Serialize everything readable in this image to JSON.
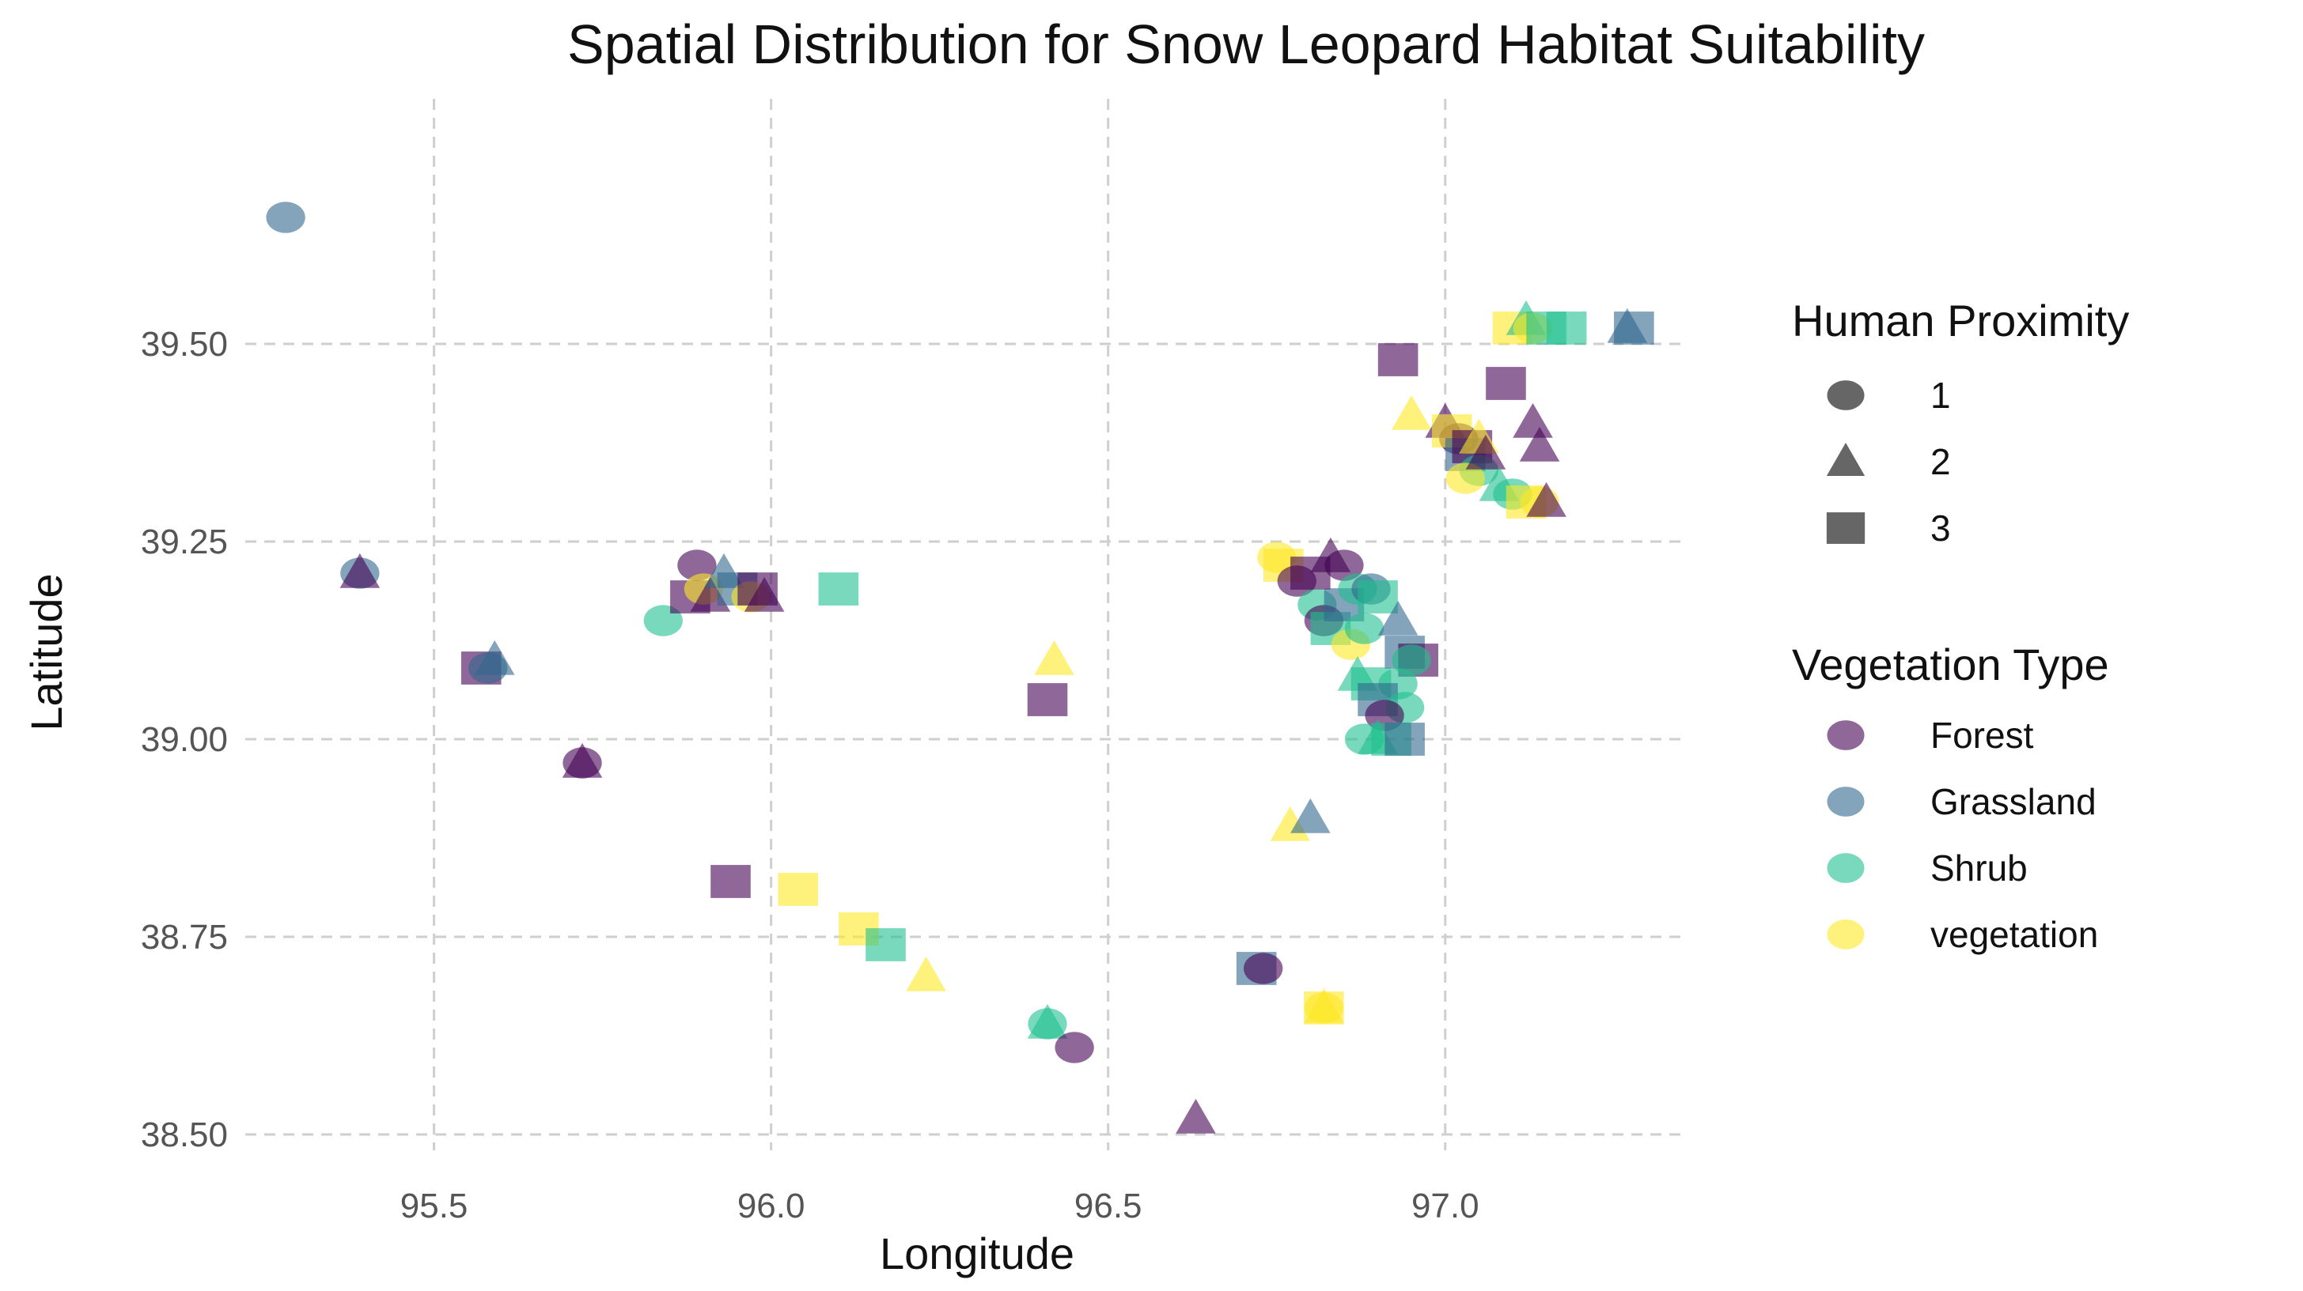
{
  "chart_data": {
    "type": "scatter",
    "title": "Spatial Distribution for Snow Leopard Habitat Suitability",
    "xlabel": "Longitude",
    "ylabel": "Latitude",
    "xlim": [
      95.22,
      97.35
    ],
    "ylim": [
      38.48,
      39.81
    ],
    "x_ticks": [
      95.5,
      96.0,
      96.5,
      97.0
    ],
    "x_tick_labels": [
      "95.5",
      "96.0",
      "96.5",
      "97.0"
    ],
    "y_ticks": [
      38.5,
      38.75,
      39.0,
      39.25,
      39.5
    ],
    "y_tick_labels": [
      "38.50",
      "38.75",
      "39.00",
      "39.25",
      "39.50"
    ],
    "grid": true,
    "legend_shape": {
      "title": "Human Proximity",
      "items": [
        {
          "label": "1",
          "shape": "circle"
        },
        {
          "label": "2",
          "shape": "triangle"
        },
        {
          "label": "3",
          "shape": "square"
        }
      ]
    },
    "legend_color": {
      "title": "Vegetation Type",
      "items": [
        {
          "label": "Forest",
          "color": "#440154"
        },
        {
          "label": "Grassland",
          "color": "#31688e"
        },
        {
          "label": "Shrub",
          "color": "#1fbf8f"
        },
        {
          "label": "vegetation",
          "color": "#fde725"
        }
      ]
    },
    "points": [
      {
        "lon": 95.28,
        "lat": 39.66,
        "veg": "Grassland",
        "prox": 1
      },
      {
        "lon": 95.39,
        "lat": 39.21,
        "veg": "Grassland",
        "prox": 1
      },
      {
        "lon": 95.39,
        "lat": 39.21,
        "veg": "Forest",
        "prox": 2
      },
      {
        "lon": 95.57,
        "lat": 39.09,
        "veg": "Forest",
        "prox": 3
      },
      {
        "lon": 95.58,
        "lat": 39.09,
        "veg": "Grassland",
        "prox": 1
      },
      {
        "lon": 95.59,
        "lat": 39.1,
        "veg": "Grassland",
        "prox": 2
      },
      {
        "lon": 95.72,
        "lat": 38.97,
        "veg": "Forest",
        "prox": 1
      },
      {
        "lon": 95.72,
        "lat": 38.97,
        "veg": "Forest",
        "prox": 2
      },
      {
        "lon": 95.84,
        "lat": 39.15,
        "veg": "Shrub",
        "prox": 1
      },
      {
        "lon": 95.88,
        "lat": 39.18,
        "veg": "Forest",
        "prox": 3
      },
      {
        "lon": 95.89,
        "lat": 39.22,
        "veg": "Forest",
        "prox": 1
      },
      {
        "lon": 95.9,
        "lat": 39.19,
        "veg": "vegetation",
        "prox": 1
      },
      {
        "lon": 95.91,
        "lat": 39.18,
        "veg": "Forest",
        "prox": 2
      },
      {
        "lon": 95.93,
        "lat": 39.21,
        "veg": "Grassland",
        "prox": 2
      },
      {
        "lon": 95.95,
        "lat": 39.19,
        "veg": "Grassland",
        "prox": 3
      },
      {
        "lon": 95.97,
        "lat": 39.18,
        "veg": "vegetation",
        "prox": 1
      },
      {
        "lon": 95.98,
        "lat": 39.19,
        "veg": "Forest",
        "prox": 3
      },
      {
        "lon": 95.99,
        "lat": 39.18,
        "veg": "Forest",
        "prox": 2
      },
      {
        "lon": 96.1,
        "lat": 39.19,
        "veg": "Shrub",
        "prox": 3
      },
      {
        "lon": 95.94,
        "lat": 38.82,
        "veg": "Forest",
        "prox": 3
      },
      {
        "lon": 96.04,
        "lat": 38.81,
        "veg": "vegetation",
        "prox": 3
      },
      {
        "lon": 96.13,
        "lat": 38.76,
        "veg": "vegetation",
        "prox": 3
      },
      {
        "lon": 96.17,
        "lat": 38.74,
        "veg": "Shrub",
        "prox": 3
      },
      {
        "lon": 96.23,
        "lat": 38.7,
        "veg": "vegetation",
        "prox": 2
      },
      {
        "lon": 96.41,
        "lat": 38.64,
        "veg": "Shrub",
        "prox": 1
      },
      {
        "lon": 96.41,
        "lat": 38.64,
        "veg": "Shrub",
        "prox": 2
      },
      {
        "lon": 96.45,
        "lat": 38.61,
        "veg": "Forest",
        "prox": 1
      },
      {
        "lon": 96.42,
        "lat": 39.1,
        "veg": "vegetation",
        "prox": 2
      },
      {
        "lon": 96.41,
        "lat": 39.05,
        "veg": "Forest",
        "prox": 3
      },
      {
        "lon": 96.63,
        "lat": 38.52,
        "veg": "Forest",
        "prox": 2
      },
      {
        "lon": 96.72,
        "lat": 38.71,
        "veg": "Grassland",
        "prox": 3
      },
      {
        "lon": 96.73,
        "lat": 38.71,
        "veg": "Forest",
        "prox": 1
      },
      {
        "lon": 96.77,
        "lat": 38.89,
        "veg": "vegetation",
        "prox": 2
      },
      {
        "lon": 96.8,
        "lat": 38.9,
        "veg": "Grassland",
        "prox": 2
      },
      {
        "lon": 96.82,
        "lat": 38.66,
        "veg": "vegetation",
        "prox": 1
      },
      {
        "lon": 96.82,
        "lat": 38.66,
        "veg": "vegetation",
        "prox": 2
      },
      {
        "lon": 96.82,
        "lat": 38.66,
        "veg": "vegetation",
        "prox": 3
      },
      {
        "lon": 96.75,
        "lat": 39.23,
        "veg": "vegetation",
        "prox": 1
      },
      {
        "lon": 96.76,
        "lat": 39.22,
        "veg": "vegetation",
        "prox": 3
      },
      {
        "lon": 96.78,
        "lat": 39.2,
        "veg": "Forest",
        "prox": 1
      },
      {
        "lon": 96.8,
        "lat": 39.21,
        "veg": "Forest",
        "prox": 3
      },
      {
        "lon": 96.83,
        "lat": 39.23,
        "veg": "Forest",
        "prox": 2
      },
      {
        "lon": 96.85,
        "lat": 39.22,
        "veg": "Forest",
        "prox": 1
      },
      {
        "lon": 96.81,
        "lat": 39.17,
        "veg": "Shrub",
        "prox": 1
      },
      {
        "lon": 96.82,
        "lat": 39.15,
        "veg": "Forest",
        "prox": 1
      },
      {
        "lon": 96.83,
        "lat": 39.14,
        "veg": "Shrub",
        "prox": 3
      },
      {
        "lon": 96.85,
        "lat": 39.17,
        "veg": "Grassland",
        "prox": 3
      },
      {
        "lon": 96.87,
        "lat": 39.19,
        "veg": "Shrub",
        "prox": 1
      },
      {
        "lon": 96.89,
        "lat": 39.19,
        "veg": "Grassland",
        "prox": 1
      },
      {
        "lon": 96.9,
        "lat": 39.18,
        "veg": "Shrub",
        "prox": 3
      },
      {
        "lon": 96.86,
        "lat": 39.12,
        "veg": "vegetation",
        "prox": 1
      },
      {
        "lon": 96.88,
        "lat": 39.14,
        "veg": "Shrub",
        "prox": 1
      },
      {
        "lon": 96.93,
        "lat": 39.15,
        "veg": "Grassland",
        "prox": 2
      },
      {
        "lon": 96.94,
        "lat": 39.11,
        "veg": "Grassland",
        "prox": 3
      },
      {
        "lon": 96.96,
        "lat": 39.1,
        "veg": "Forest",
        "prox": 3
      },
      {
        "lon": 96.95,
        "lat": 39.1,
        "veg": "Shrub",
        "prox": 1
      },
      {
        "lon": 96.87,
        "lat": 39.08,
        "veg": "Shrub",
        "prox": 2
      },
      {
        "lon": 96.89,
        "lat": 39.07,
        "veg": "Shrub",
        "prox": 3
      },
      {
        "lon": 96.93,
        "lat": 39.07,
        "veg": "Shrub",
        "prox": 1
      },
      {
        "lon": 96.9,
        "lat": 39.05,
        "veg": "Grassland",
        "prox": 3
      },
      {
        "lon": 96.94,
        "lat": 39.04,
        "veg": "Shrub",
        "prox": 1
      },
      {
        "lon": 96.91,
        "lat": 39.03,
        "veg": "Forest",
        "prox": 1
      },
      {
        "lon": 96.88,
        "lat": 39.0,
        "veg": "Shrub",
        "prox": 1
      },
      {
        "lon": 96.9,
        "lat": 39.0,
        "veg": "Shrub",
        "prox": 2
      },
      {
        "lon": 96.92,
        "lat": 39.0,
        "veg": "Shrub",
        "prox": 3
      },
      {
        "lon": 96.94,
        "lat": 39.0,
        "veg": "Grassland",
        "prox": 3
      },
      {
        "lon": 96.93,
        "lat": 39.48,
        "veg": "Forest",
        "prox": 3
      },
      {
        "lon": 96.95,
        "lat": 39.41,
        "veg": "vegetation",
        "prox": 2
      },
      {
        "lon": 97.0,
        "lat": 39.4,
        "veg": "Forest",
        "prox": 2
      },
      {
        "lon": 97.02,
        "lat": 39.38,
        "veg": "Forest",
        "prox": 1
      },
      {
        "lon": 97.01,
        "lat": 39.39,
        "veg": "vegetation",
        "prox": 3
      },
      {
        "lon": 97.03,
        "lat": 39.36,
        "veg": "Grassland",
        "prox": 3
      },
      {
        "lon": 97.04,
        "lat": 39.37,
        "veg": "Forest",
        "prox": 3
      },
      {
        "lon": 97.05,
        "lat": 39.34,
        "veg": "Shrub",
        "prox": 1
      },
      {
        "lon": 97.03,
        "lat": 39.33,
        "veg": "vegetation",
        "prox": 1
      },
      {
        "lon": 97.05,
        "lat": 39.38,
        "veg": "vegetation",
        "prox": 2
      },
      {
        "lon": 97.06,
        "lat": 39.36,
        "veg": "Forest",
        "prox": 2
      },
      {
        "lon": 97.08,
        "lat": 39.32,
        "veg": "Shrub",
        "prox": 2
      },
      {
        "lon": 97.1,
        "lat": 39.31,
        "veg": "Shrub",
        "prox": 1
      },
      {
        "lon": 97.12,
        "lat": 39.3,
        "veg": "vegetation",
        "prox": 3
      },
      {
        "lon": 97.14,
        "lat": 39.3,
        "veg": "vegetation",
        "prox": 1
      },
      {
        "lon": 97.15,
        "lat": 39.3,
        "veg": "Forest",
        "prox": 2
      },
      {
        "lon": 97.09,
        "lat": 39.45,
        "veg": "Forest",
        "prox": 3
      },
      {
        "lon": 97.13,
        "lat": 39.4,
        "veg": "Forest",
        "prox": 2
      },
      {
        "lon": 97.14,
        "lat": 39.37,
        "veg": "Forest",
        "prox": 2
      },
      {
        "lon": 97.1,
        "lat": 39.52,
        "veg": "vegetation",
        "prox": 3
      },
      {
        "lon": 97.12,
        "lat": 39.53,
        "veg": "Shrub",
        "prox": 2
      },
      {
        "lon": 97.13,
        "lat": 39.52,
        "veg": "vegetation",
        "prox": 1
      },
      {
        "lon": 97.15,
        "lat": 39.52,
        "veg": "Shrub",
        "prox": 3
      },
      {
        "lon": 97.18,
        "lat": 39.52,
        "veg": "Shrub",
        "prox": 3
      },
      {
        "lon": 97.27,
        "lat": 39.52,
        "veg": "Grassland",
        "prox": 2
      },
      {
        "lon": 97.28,
        "lat": 39.52,
        "veg": "Grassland",
        "prox": 3
      }
    ]
  }
}
